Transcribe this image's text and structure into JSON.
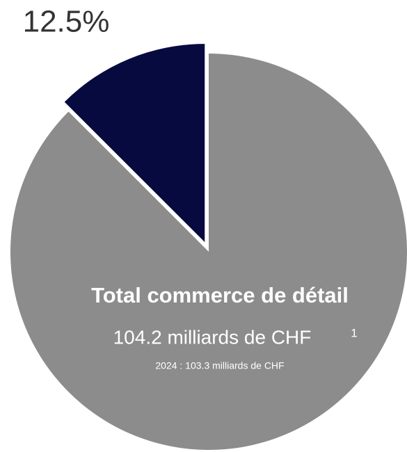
{
  "chart_data": {
    "type": "pie",
    "values": [
      12.5,
      87.5
    ],
    "value_labels": [
      "12.5%",
      null
    ],
    "colors": [
      "#070a3f",
      "#8c8c8c"
    ],
    "explode": [
      true,
      false
    ],
    "center_title": "Total commerce de détail",
    "center_subtitle": "104.2 milliards de CHF",
    "footnote_mark": "1",
    "center_note": "2024 : 103.3 milliards de CHF"
  }
}
